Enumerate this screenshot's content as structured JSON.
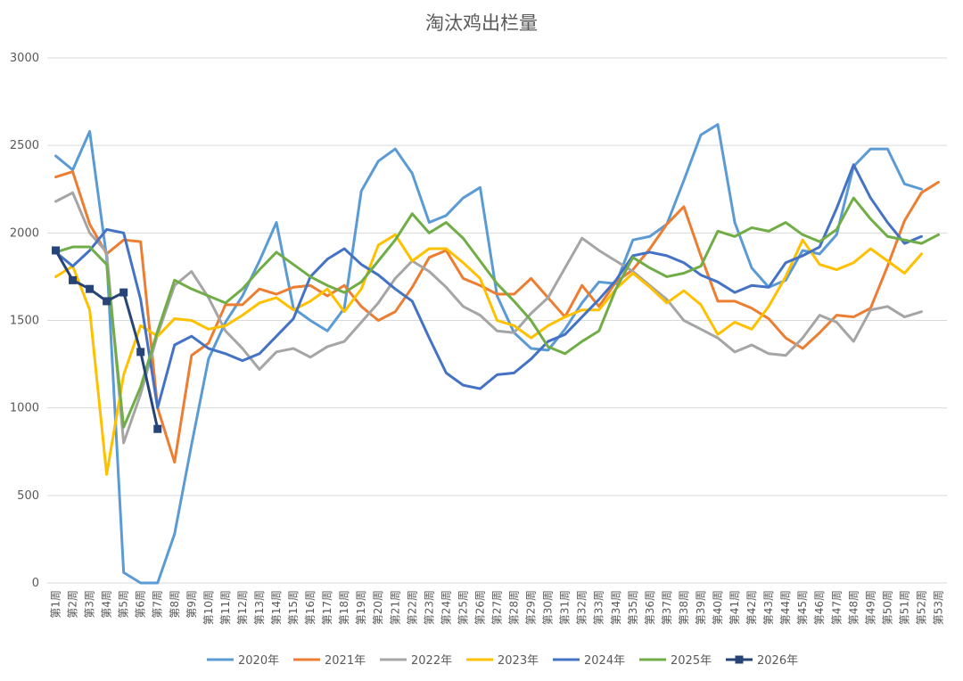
{
  "chart_data": {
    "type": "line",
    "title": "淘汰鸡出栏量",
    "xlabel": "",
    "ylabel": "",
    "ylim": [
      0,
      3000
    ],
    "yticks": [
      0,
      500,
      1000,
      1500,
      2000,
      2500,
      3000
    ],
    "grid": true,
    "legend_position": "bottom",
    "categories": [
      "第1周",
      "第2周",
      "第3周",
      "第4周",
      "第5周",
      "第6周",
      "第7周",
      "第8周",
      "第9周",
      "第10周",
      "第11周",
      "第12周",
      "第13周",
      "第14周",
      "第15周",
      "第16周",
      "第17周",
      "第18周",
      "第19周",
      "第20周",
      "第21周",
      "第22周",
      "第23周",
      "第24周",
      "第25周",
      "第26周",
      "第27周",
      "第28周",
      "第29周",
      "第30周",
      "第31周",
      "第32周",
      "第33周",
      "第34周",
      "第35周",
      "第36周",
      "第37周",
      "第38周",
      "第39周",
      "第40周",
      "第41周",
      "第42周",
      "第43周",
      "第44周",
      "第45周",
      "第46周",
      "第47周",
      "第48周",
      "第49周",
      "第50周",
      "第51周",
      "第52周",
      "第53周"
    ],
    "series": [
      {
        "name": "2020年",
        "color": "#5b9bd5",
        "marker": false,
        "values": [
          2440,
          2360,
          2580,
          1860,
          60,
          0,
          0,
          280,
          790,
          1280,
          1490,
          1640,
          1840,
          2060,
          1570,
          1500,
          1440,
          1570,
          2240,
          2410,
          2480,
          2340,
          2060,
          2100,
          2200,
          2260,
          1640,
          1430,
          1340,
          1330,
          1450,
          1600,
          1720,
          1710,
          1960,
          1980,
          2050,
          2300,
          2560,
          2620,
          2060,
          1800,
          1690,
          1730,
          1900,
          1880,
          1990,
          2380,
          2480,
          2480,
          2280,
          2250,
          null
        ]
      },
      {
        "name": "2021年",
        "color": "#ed7d31",
        "marker": false,
        "values": [
          2320,
          2350,
          2050,
          1880,
          1960,
          1950,
          1000,
          690,
          1300,
          1370,
          1590,
          1590,
          1680,
          1650,
          1690,
          1700,
          1640,
          1700,
          1580,
          1500,
          1550,
          1690,
          1860,
          1900,
          1740,
          1700,
          1650,
          1650,
          1740,
          1630,
          1520,
          1700,
          1580,
          1720,
          1790,
          1910,
          2050,
          2150,
          1870,
          1610,
          1610,
          1570,
          1510,
          1400,
          1340,
          1430,
          1530,
          1520,
          1570,
          1810,
          2070,
          2230,
          2290
        ]
      },
      {
        "name": "2022年",
        "color": "#a5a5a5",
        "marker": false,
        "values": [
          2180,
          2230,
          2000,
          1890,
          800,
          1080,
          1420,
          1700,
          1780,
          1630,
          1440,
          1340,
          1220,
          1320,
          1340,
          1290,
          1350,
          1380,
          1490,
          1600,
          1740,
          1840,
          1780,
          1690,
          1580,
          1530,
          1440,
          1430,
          1540,
          1630,
          1800,
          1970,
          1900,
          1840,
          1780,
          1700,
          1620,
          1500,
          1450,
          1400,
          1320,
          1360,
          1310,
          1300,
          1400,
          1530,
          1490,
          1380,
          1560,
          1580,
          1520,
          1550,
          null
        ]
      },
      {
        "name": "2023年",
        "color": "#ffc000",
        "marker": false,
        "values": [
          1750,
          1810,
          1560,
          620,
          1190,
          1470,
          1410,
          1510,
          1500,
          1450,
          1470,
          1530,
          1600,
          1630,
          1560,
          1610,
          1680,
          1550,
          1680,
          1930,
          1990,
          1840,
          1910,
          1910,
          1830,
          1740,
          1500,
          1470,
          1400,
          1470,
          1520,
          1560,
          1560,
          1680,
          1770,
          1690,
          1600,
          1670,
          1590,
          1420,
          1490,
          1450,
          1580,
          1750,
          1960,
          1820,
          1790,
          1830,
          1910,
          1840,
          1770,
          1880,
          null
        ]
      },
      {
        "name": "2024年",
        "color": "#4472c4",
        "marker": false,
        "values": [
          1890,
          1810,
          1900,
          2020,
          2000,
          1620,
          1000,
          1360,
          1410,
          1340,
          1310,
          1270,
          1310,
          1410,
          1510,
          1750,
          1850,
          1910,
          1820,
          1760,
          1680,
          1610,
          1400,
          1200,
          1130,
          1110,
          1190,
          1200,
          1280,
          1380,
          1420,
          1520,
          1620,
          1730,
          1870,
          1890,
          1870,
          1830,
          1760,
          1720,
          1660,
          1700,
          1690,
          1830,
          1870,
          1920,
          2140,
          2390,
          2200,
          2060,
          1940,
          1980,
          null
        ]
      },
      {
        "name": "2025年",
        "color": "#70ad47",
        "marker": false,
        "values": [
          1890,
          1920,
          1920,
          1820,
          890,
          1120,
          1440,
          1730,
          1680,
          1640,
          1600,
          1680,
          1790,
          1890,
          1820,
          1750,
          1700,
          1660,
          1720,
          1840,
          1960,
          2110,
          2000,
          2060,
          1970,
          1840,
          1710,
          1610,
          1500,
          1350,
          1310,
          1380,
          1440,
          1680,
          1860,
          1800,
          1750,
          1770,
          1810,
          2010,
          1980,
          2030,
          2010,
          2060,
          1990,
          1950,
          2020,
          2200,
          2080,
          1980,
          1960,
          1940,
          1990
        ]
      },
      {
        "name": "2026年",
        "color": "#264478",
        "marker": true,
        "values": [
          1900,
          1730,
          1680,
          1610,
          1660,
          1320,
          880,
          null,
          null,
          null,
          null,
          null,
          null,
          null,
          null,
          null,
          null,
          null,
          null,
          null,
          null,
          null,
          null,
          null,
          null,
          null,
          null,
          null,
          null,
          null,
          null,
          null,
          null,
          null,
          null,
          null,
          null,
          null,
          null,
          null,
          null,
          null,
          null,
          null,
          null,
          null,
          null,
          null,
          null,
          null,
          null,
          null,
          null
        ]
      }
    ]
  }
}
